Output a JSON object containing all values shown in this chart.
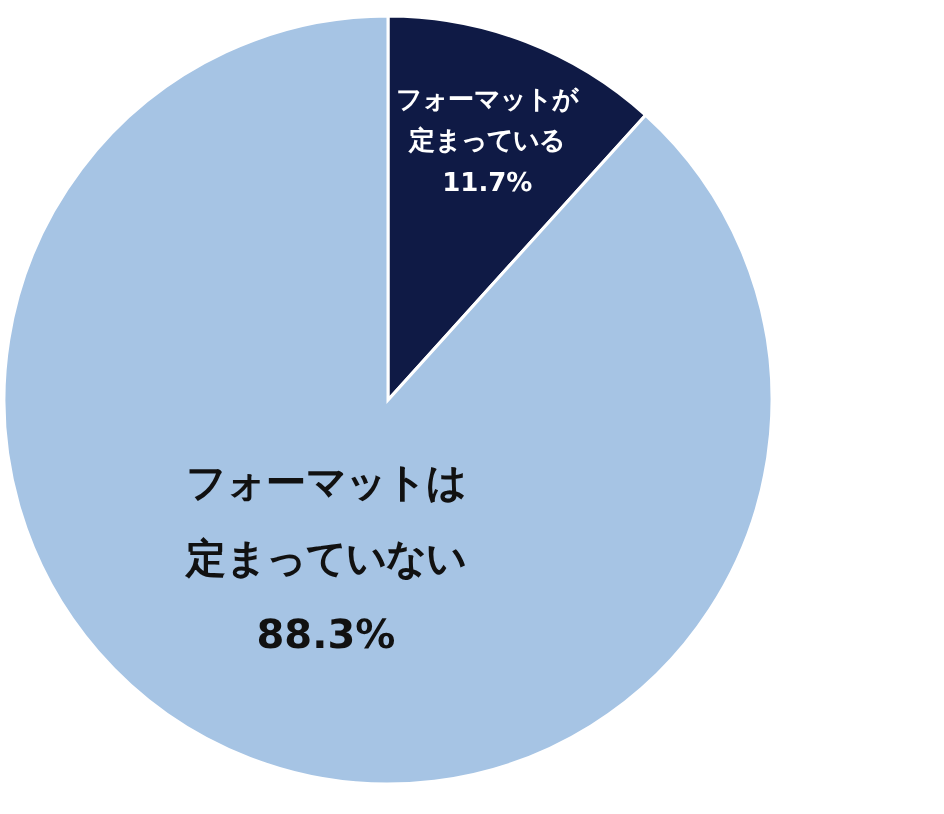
{
  "chart_data": {
    "type": "pie",
    "categories": [
      "フォーマットが定まっている",
      "フォーマットは定まっていない"
    ],
    "values": [
      11.7,
      88.3
    ],
    "colors": [
      "#0f1a45",
      "#a6c4e4"
    ],
    "value_labels": [
      "11.7%",
      "88.3%"
    ]
  }
}
